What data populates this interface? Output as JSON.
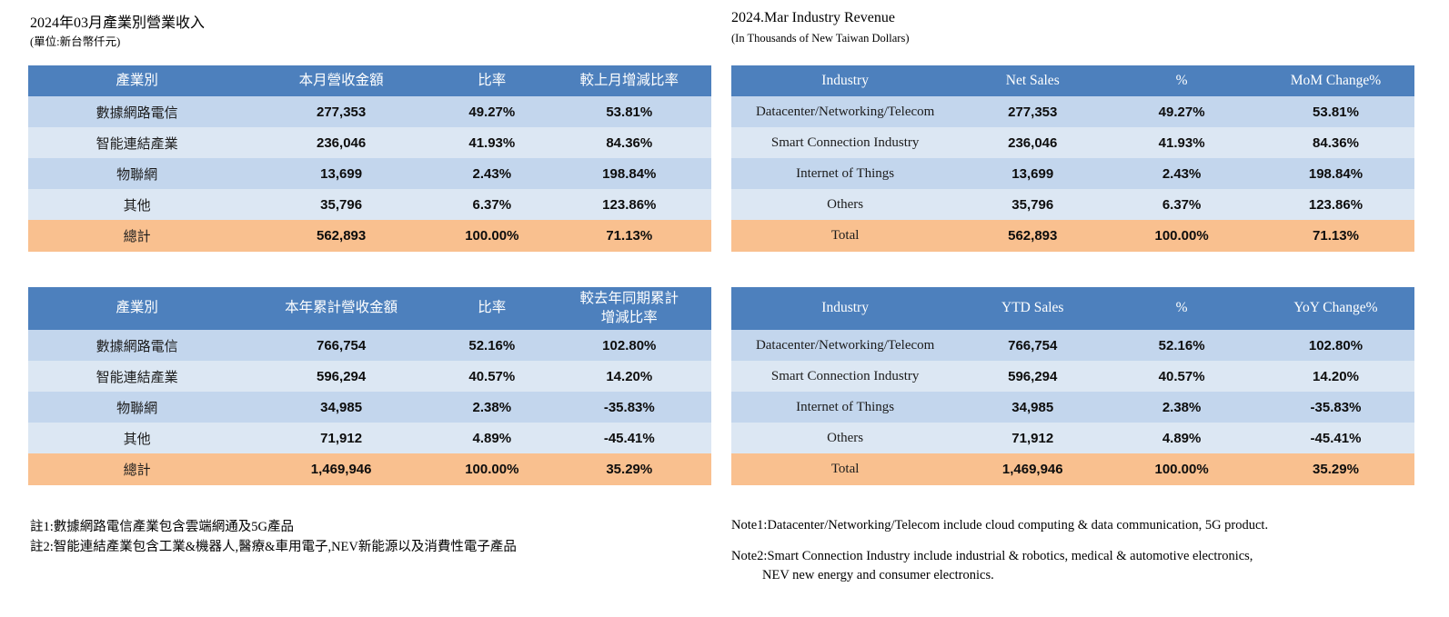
{
  "colors": {
    "header_bg": "#4d80bd",
    "header_text": "#ffffff",
    "row_dark": "#c3d6ed",
    "row_light": "#dce7f3",
    "total_bg": "#f9c08f"
  },
  "left_panel": {
    "title": "2024年03月產業別營業收入",
    "subtitle": "(單位:新台幣仟元)",
    "monthly_table": {
      "columns": [
        "產業別",
        "本月營收金額",
        "比率",
        "較上月增減比率"
      ],
      "rows": [
        [
          "數據網路電信",
          "277,353",
          "49.27%",
          "53.81%"
        ],
        [
          "智能連結產業",
          "236,046",
          "41.93%",
          "84.36%"
        ],
        [
          "物聯網",
          "13,699",
          "2.43%",
          "198.84%"
        ],
        [
          "其他",
          "35,796",
          "6.37%",
          "123.86%"
        ]
      ],
      "total_row": [
        "總計",
        "562,893",
        "100.00%",
        "71.13%"
      ]
    },
    "ytd_table": {
      "columns": [
        "產業別",
        "本年累計營收金額",
        "比率",
        "較去年同期累計\n增減比率"
      ],
      "rows": [
        [
          "數據網路電信",
          "766,754",
          "52.16%",
          "102.80%"
        ],
        [
          "智能連結產業",
          "596,294",
          "40.57%",
          "14.20%"
        ],
        [
          "物聯網",
          "34,985",
          "2.38%",
          "-35.83%"
        ],
        [
          "其他",
          "71,912",
          "4.89%",
          "-45.41%"
        ]
      ],
      "total_row": [
        "總計",
        "1,469,946",
        "100.00%",
        "35.29%"
      ]
    },
    "notes": [
      "註1:數據網路電信產業包含雲端網通及5G產品",
      "註2:智能連結產業包含工業&機器人,醫療&車用電子,NEV新能源以及消費性電子產品"
    ]
  },
  "right_panel": {
    "title": "2024.Mar Industry Revenue",
    "subtitle": "(In Thousands of New Taiwan Dollars)",
    "monthly_table": {
      "columns": [
        "Industry",
        "Net Sales",
        "%",
        "MoM Change%"
      ],
      "rows": [
        [
          "Datacenter/Networking/Telecom",
          "277,353",
          "49.27%",
          "53.81%"
        ],
        [
          "Smart Connection Industry",
          "236,046",
          "41.93%",
          "84.36%"
        ],
        [
          "Internet of Things",
          "13,699",
          "2.43%",
          "198.84%"
        ],
        [
          "Others",
          "35,796",
          "6.37%",
          "123.86%"
        ]
      ],
      "total_row": [
        "Total",
        "562,893",
        "100.00%",
        "71.13%"
      ]
    },
    "ytd_table": {
      "columns": [
        "Industry",
        "YTD Sales",
        "%",
        "YoY Change%"
      ],
      "rows": [
        [
          "Datacenter/Networking/Telecom",
          "766,754",
          "52.16%",
          "102.80%"
        ],
        [
          "Smart Connection Industry",
          "596,294",
          "40.57%",
          "14.20%"
        ],
        [
          "Internet of Things",
          "34,985",
          "2.38%",
          "-35.83%"
        ],
        [
          "Others",
          "71,912",
          "4.89%",
          "-45.41%"
        ]
      ],
      "total_row": [
        "Total",
        "1,469,946",
        "100.00%",
        "35.29%"
      ]
    },
    "notes": [
      "Note1:Datacenter/Networking/Telecom include cloud computing & data communication, 5G product.",
      "Note2:Smart Connection Industry include industrial & robotics, medical & automotive electronics,\nNEV new energy and consumer electronics."
    ]
  }
}
